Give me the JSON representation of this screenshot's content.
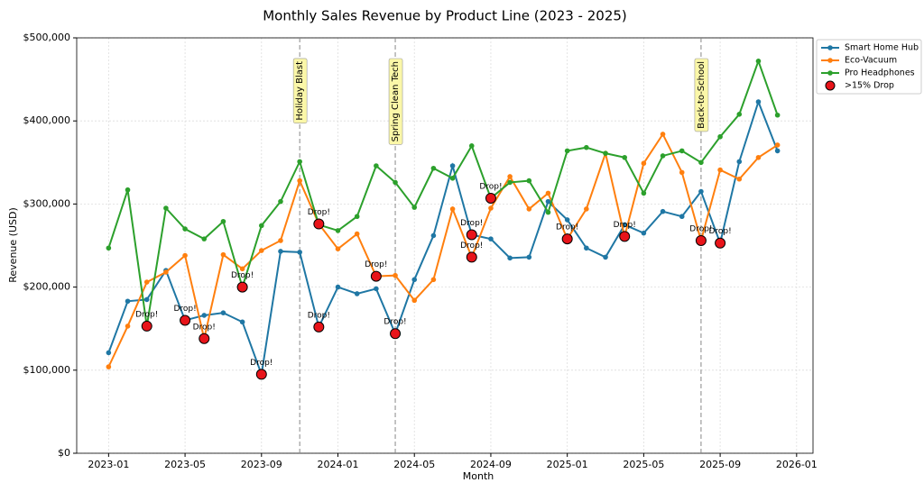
{
  "chart_data": {
    "type": "line",
    "title": "Monthly Sales Revenue by Product Line (2023 - 2025)",
    "x_label": "Month",
    "y_label": "Revenue (USD)",
    "x": [
      "2023-01",
      "2023-02",
      "2023-03",
      "2023-04",
      "2023-05",
      "2023-06",
      "2023-07",
      "2023-08",
      "2023-09",
      "2023-10",
      "2023-11",
      "2023-12",
      "2024-01",
      "2024-02",
      "2024-03",
      "2024-04",
      "2024-05",
      "2024-06",
      "2024-07",
      "2024-08",
      "2024-09",
      "2024-10",
      "2024-11",
      "2024-12",
      "2025-01",
      "2025-02",
      "2025-03",
      "2025-04",
      "2025-05",
      "2025-06",
      "2025-07",
      "2025-08",
      "2025-09",
      "2025-10",
      "2025-11",
      "2025-12"
    ],
    "series": [
      {
        "name": "Smart Home Hub",
        "color": "#1f77a4",
        "values": [
          121000,
          183000,
          185000,
          220000,
          160000,
          166000,
          169000,
          158000,
          95000,
          243000,
          242000,
          152000,
          200000,
          192000,
          198000,
          144000,
          209000,
          262000,
          346000,
          263000,
          258000,
          235000,
          236000,
          303000,
          281000,
          247000,
          236000,
          275000,
          265000,
          291000,
          285000,
          315000,
          253000,
          351000,
          423000,
          364000
        ]
      },
      {
        "name": "Eco-Vacuum",
        "color": "#ff7f0e",
        "values": [
          104000,
          153000,
          206000,
          218000,
          238000,
          138000,
          239000,
          222000,
          244000,
          256000,
          328000,
          276000,
          246000,
          264000,
          213000,
          214000,
          184000,
          209000,
          294000,
          236000,
          295000,
          333000,
          294000,
          313000,
          258000,
          294000,
          361000,
          261000,
          349000,
          384000,
          338000,
          256000,
          341000,
          330000,
          356000,
          371000
        ]
      },
      {
        "name": "Pro Headphones",
        "color": "#2ca02c",
        "values": [
          247000,
          317000,
          153000,
          295000,
          270000,
          258000,
          279000,
          200000,
          274000,
          303000,
          351000,
          275000,
          268000,
          285000,
          346000,
          326000,
          296000,
          343000,
          331000,
          370000,
          307000,
          326000,
          328000,
          290000,
          364000,
          368000,
          361000,
          356000,
          313000,
          358000,
          364000,
          350000,
          381000,
          408000,
          472000,
          407000
        ]
      }
    ],
    "drops": {
      "name": ">15% Drop",
      "label": "Drop!",
      "color": "#e8141a",
      "x": [
        "2023-03",
        "2023-05",
        "2023-06",
        "2023-08",
        "2023-09",
        "2023-12",
        "2023-12",
        "2024-03",
        "2024-04",
        "2024-08",
        "2024-08",
        "2024-09",
        "2025-01",
        "2025-04",
        "2025-08",
        "2025-09"
      ],
      "values": [
        153000,
        160000,
        138000,
        200000,
        95000,
        152000,
        276000,
        213000,
        144000,
        263000,
        236000,
        307000,
        258000,
        261000,
        256000,
        253000
      ]
    },
    "annotations": [
      {
        "x": "2023-11",
        "text": "Holiday Blast"
      },
      {
        "x": "2024-04",
        "text": "Spring Clean Tech"
      },
      {
        "x": "2025-08",
        "text": "Back-to-School"
      }
    ],
    "xlim": [
      "2022-11",
      "2026-02"
    ],
    "xticks": [
      "2023-01",
      "2023-05",
      "2023-09",
      "2024-01",
      "2024-05",
      "2024-09",
      "2025-01",
      "2025-05",
      "2025-09",
      "2026-01"
    ],
    "ylim": [
      0,
      500000
    ],
    "yticks": [
      {
        "value": 0,
        "label": "$0"
      },
      {
        "value": 100000,
        "label": "$100,000"
      },
      {
        "value": 200000,
        "label": "$200,000"
      },
      {
        "value": 300000,
        "label": "$300,000"
      },
      {
        "value": 400000,
        "label": "$400,000"
      },
      {
        "value": 500000,
        "label": "$500,000"
      }
    ],
    "grid": true,
    "legend": "outside-right"
  }
}
